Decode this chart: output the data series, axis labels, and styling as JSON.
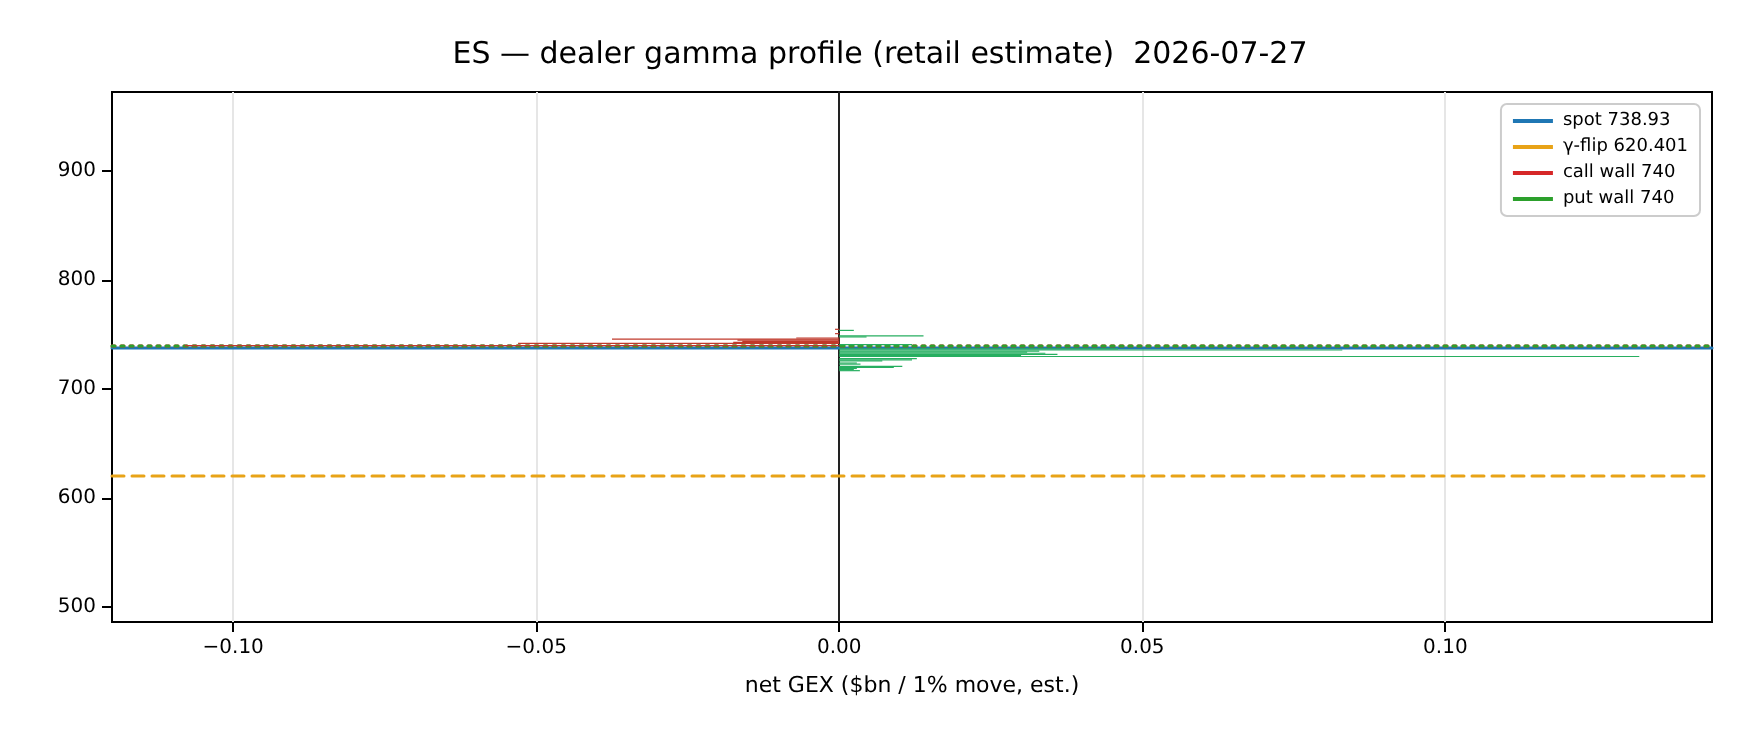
{
  "chart_data": {
    "type": "bar",
    "orientation": "horizontal",
    "title": "ES — dealer gamma profile (retail estimate)  2026-07-27",
    "xlabel": "net GEX ($bn / 1% move, est.)",
    "x": [
      755,
      754,
      751,
      749,
      748,
      747,
      746,
      745,
      744,
      743,
      742,
      741,
      740,
      737,
      736,
      735,
      734,
      733,
      732,
      731,
      730,
      728,
      727,
      726,
      724,
      723,
      721,
      720,
      719,
      718,
      717
    ],
    "values": [
      -0.0007,
      0.0024,
      -0.0007,
      0.0139,
      0.0045,
      -0.0071,
      -0.0375,
      -0.0168,
      -0.016,
      -0.0175,
      -0.053,
      0.012,
      -0.108,
      0.046,
      0.083,
      0.033,
      0.031,
      0.034,
      0.036,
      0.03,
      0.132,
      0.0128,
      0.012,
      0.0071,
      0.0029,
      0.0035,
      0.0104,
      0.009,
      0.0029,
      0.0024,
      0.0034
    ],
    "colors": [
      "#c0392b",
      "#27ae60",
      "#c0392b",
      "#27ae60",
      "#27ae60",
      "#c0392b",
      "#c0392b",
      "#c0392b",
      "#c0392b",
      "#c0392b",
      "#c0392b",
      "#27ae60",
      "#c0392b",
      "#27ae60",
      "#27ae60",
      "#27ae60",
      "#27ae60",
      "#27ae60",
      "#27ae60",
      "#27ae60",
      "#27ae60",
      "#27ae60",
      "#27ae60",
      "#27ae60",
      "#27ae60",
      "#27ae60",
      "#27ae60",
      "#27ae60",
      "#27ae60",
      "#27ae60",
      "#27ae60"
    ],
    "xlim": [
      -0.12,
      0.144
    ],
    "xticks": [
      {
        "value": -0.1,
        "label": "−0.10"
      },
      {
        "value": -0.05,
        "label": "−0.05"
      },
      {
        "value": 0,
        "label": "0.00"
      },
      {
        "value": 0.05,
        "label": "0.05"
      },
      {
        "value": 0.1,
        "label": "0.10"
      }
    ],
    "ylim": [
      486,
      973
    ],
    "yticks": [
      500,
      600,
      700,
      800,
      900
    ],
    "ref_lines": [
      {
        "axis": "y",
        "value": 738.93,
        "label": "spot 738.93",
        "color": "#1f77b4",
        "line_style": "solid"
      },
      {
        "axis": "y",
        "value": 620.401,
        "label": "γ-flip 620.401",
        "color": "#e8a317",
        "line_style": "dashed"
      },
      {
        "axis": "y",
        "value": 740,
        "label": "call wall 740",
        "color": "#d62728",
        "line_style": "dotted"
      },
      {
        "axis": "y",
        "value": 740,
        "label": "put wall 740",
        "color": "#2ca02c",
        "line_style": "dotted"
      }
    ],
    "grid": "x",
    "legend": "top right"
  }
}
